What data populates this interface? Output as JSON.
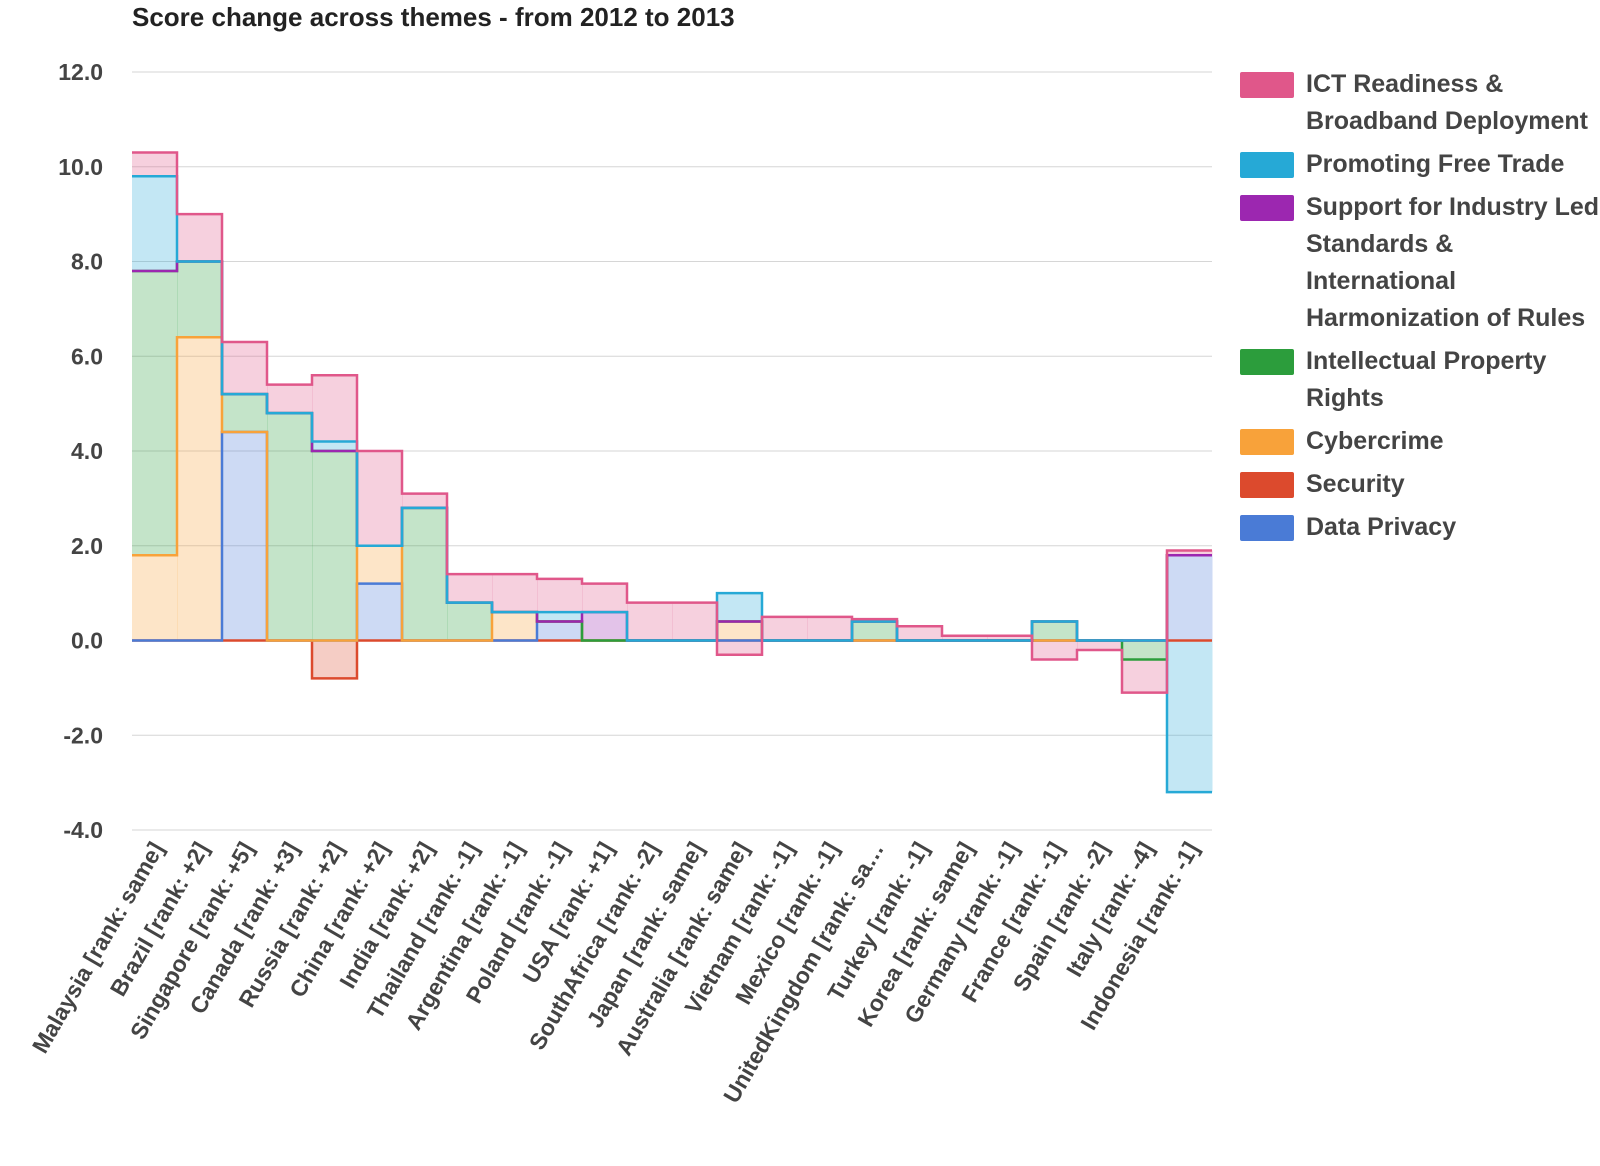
{
  "chart_data": {
    "type": "stepped-area",
    "title": "Score change across themes - from 2012 to 2013",
    "ylim": [
      -4.0,
      12.0
    ],
    "yticks": [
      "12.0",
      "10.0",
      "8.0",
      "6.0",
      "4.0",
      "2.0",
      "0.0",
      "-2.0",
      "-4.0"
    ],
    "grid": true,
    "legend_position": "right",
    "categories": [
      "Malaysia [rank: same]",
      "Brazil [rank: +2]",
      "Singapore [rank: +5]",
      "Canada [rank: +3]",
      "Russia [rank: +2]",
      "China [rank: +2]",
      "India [rank: +2]",
      "Thailand [rank: -1]",
      "Argentina [rank: -1]",
      "Poland [rank: -1]",
      "USA [rank: +1]",
      "SouthAfrica [rank: -2]",
      "Japan [rank: same]",
      "Australia [rank: same]",
      "Vietnam [rank: -1]",
      "Mexico [rank: -1]",
      "UnitedKingdom [rank: sa…",
      "Turkey [rank: -1]",
      "Korea [rank: same]",
      "Germany [rank: -1]",
      "France [rank: -1]",
      "Spain [rank: -2]",
      "Italy [rank: -4]",
      "Indonesia [rank: -1]"
    ],
    "series": [
      {
        "name": "Security",
        "color": "#dc4a2d",
        "values": [
          0,
          0,
          0,
          0,
          -0.8,
          0,
          0,
          0,
          0,
          0,
          0,
          0,
          0,
          0,
          0,
          0,
          0,
          0,
          0,
          0,
          0,
          0,
          0,
          0
        ]
      },
      {
        "name": "Data Privacy",
        "color": "#4a7bd6",
        "values": [
          0,
          0,
          4.4,
          0,
          0,
          1.2,
          0,
          0,
          0,
          0.4,
          0,
          0,
          0,
          0,
          0,
          0,
          0,
          0,
          0,
          0,
          0,
          0,
          0,
          1.8
        ]
      },
      {
        "name": "Cybercrime",
        "color": "#f8a23a",
        "values": [
          1.8,
          6.4,
          0,
          0,
          0,
          0.8,
          0,
          0,
          0.6,
          0,
          0,
          0,
          0,
          0.4,
          0,
          0,
          0,
          0,
          0,
          0,
          0,
          0,
          0,
          0
        ]
      },
      {
        "name": "Intellectual Property Rights",
        "color": "#2c9d3c",
        "values": [
          6.0,
          1.6,
          0.8,
          4.8,
          4.0,
          0,
          2.8,
          0.8,
          0,
          0,
          0,
          0,
          0,
          0,
          0,
          0,
          0.4,
          0,
          0,
          0,
          0.4,
          0,
          -0.4,
          0
        ]
      },
      {
        "name": "Support for Industry Led Standards & International Harmonization of Rules",
        "color": "#9c27b0",
        "values": [
          0,
          0,
          0,
          0,
          0,
          0,
          0,
          0,
          0,
          0,
          0.6,
          0,
          0,
          0,
          0,
          0,
          0,
          0,
          0,
          0,
          0,
          0,
          0,
          0
        ]
      },
      {
        "name": "Promoting Free Trade",
        "color": "#26a9d6",
        "values": [
          2.0,
          0,
          0,
          0,
          0.2,
          0,
          0,
          0,
          0,
          0.2,
          0,
          0,
          0,
          0.6,
          0,
          0,
          0,
          0,
          0,
          0,
          0,
          0,
          0,
          -3.2
        ]
      },
      {
        "name": "ICT Readiness & Broadband Deployment",
        "color": "#e0578a",
        "values": [
          0.5,
          1.0,
          1.1,
          0.6,
          1.4,
          2.0,
          0.3,
          0.6,
          0.8,
          0.7,
          0.6,
          0.8,
          0.8,
          -0.3,
          0.5,
          0.5,
          0.05,
          0.3,
          0.1,
          0.1,
          -0.4,
          -0.2,
          -0.7,
          0.1
        ]
      }
    ]
  },
  "legend": [
    {
      "label": "ICT Readiness & Broadband Deployment",
      "color": "#e0578a"
    },
    {
      "label": "Promoting Free Trade",
      "color": "#26a9d6"
    },
    {
      "label": "Support for Industry Led Standards & International Harmonization of Rules",
      "color": "#9c27b0"
    },
    {
      "label": "Intellectual Property Rights",
      "color": "#2c9d3c"
    },
    {
      "label": "Cybercrime",
      "color": "#f8a23a"
    },
    {
      "label": "Security",
      "color": "#dc4a2d"
    },
    {
      "label": "Data Privacy",
      "color": "#4a7bd6"
    }
  ]
}
